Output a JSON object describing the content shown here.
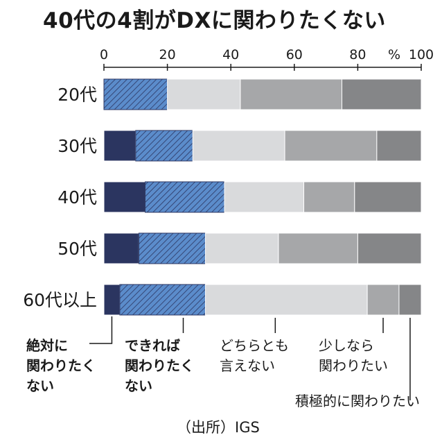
{
  "title": "40代の4割がDXに関わりたくない",
  "source": "（出所）IGS",
  "chart_data": {
    "type": "bar",
    "orientation": "horizontal",
    "stacked": true,
    "title": "40代の4割がDXに関わりたくない",
    "xlabel": "",
    "ylabel": "",
    "unit": "%",
    "xlim": [
      0,
      100
    ],
    "ticks": [
      0,
      20,
      40,
      60,
      80,
      100
    ],
    "tick_labels": [
      "0",
      "20",
      "40",
      "60",
      "80",
      "100"
    ],
    "categories": [
      "20代",
      "30代",
      "40代",
      "50代",
      "60代以上"
    ],
    "series": [
      {
        "name": "絶対に関わりたくない",
        "label_lines": [
          "絶対に",
          "関わりたく",
          "ない"
        ],
        "color": "#2b3560",
        "hatched": false,
        "bold": true,
        "values": [
          0,
          10,
          13,
          11,
          5
        ]
      },
      {
        "name": "できれば関わりたくない",
        "label_lines": [
          "できれば",
          "関わりたく",
          "ない"
        ],
        "color": "#5b8ccb",
        "hatched": true,
        "bold": true,
        "values": [
          20,
          18,
          25,
          21,
          27
        ]
      },
      {
        "name": "どちらとも言えない",
        "label_lines": [
          "どちらとも",
          "言えない"
        ],
        "color": "#d9dadc",
        "hatched": false,
        "bold": false,
        "values": [
          23,
          29,
          25,
          23,
          51
        ]
      },
      {
        "name": "少しなら関わりたい",
        "label_lines": [
          "少しなら",
          "関わりたい"
        ],
        "color": "#a6a7a9",
        "hatched": false,
        "bold": false,
        "values": [
          32,
          29,
          16,
          25,
          10
        ]
      },
      {
        "name": "積極的に関わりたい",
        "label_lines": [
          "積極的に関わりたい"
        ],
        "color": "#858688",
        "hatched": false,
        "bold": false,
        "values": [
          25,
          14,
          21,
          20,
          7
        ]
      }
    ],
    "grid": false,
    "legend": "bottom"
  }
}
